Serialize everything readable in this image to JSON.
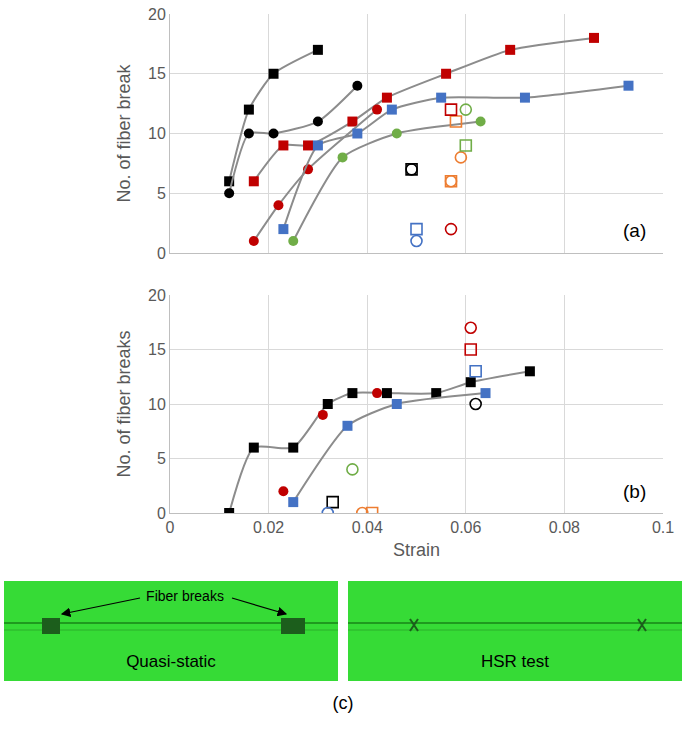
{
  "chart_data": [
    {
      "type": "scatter",
      "y_label": "No. of fiber break",
      "annotations": [
        "(a)"
      ],
      "xlim": [
        0,
        0.1
      ],
      "xticks": [
        0,
        0.02,
        0.04,
        0.06,
        0.08,
        0.1
      ],
      "ylim": [
        0,
        20
      ],
      "yticks": [
        0,
        5,
        10,
        15,
        20
      ],
      "grid": true,
      "tick_labels": "y",
      "series": [
        {
          "type": "line",
          "color": "#000000",
          "marker": "square",
          "x": [
            0.012,
            0.016,
            0.021,
            0.03
          ],
          "values": [
            6,
            12,
            15,
            17
          ]
        },
        {
          "type": "line",
          "color": "#000000",
          "marker": "circle",
          "x": [
            0.012,
            0.016,
            0.021,
            0.03,
            0.038
          ],
          "values": [
            5,
            10,
            10,
            11,
            14
          ]
        },
        {
          "type": "line",
          "color": "#c00000",
          "marker": "square",
          "x": [
            0.017,
            0.023,
            0.028,
            0.037,
            0.044,
            0.056,
            0.069,
            0.086
          ],
          "values": [
            6,
            9,
            9,
            11,
            13,
            15,
            17,
            18
          ]
        },
        {
          "type": "line",
          "color": "#c00000",
          "marker": "circle",
          "x": [
            0.017,
            0.022,
            0.028,
            0.042
          ],
          "values": [
            1,
            4,
            7,
            12
          ]
        },
        {
          "type": "line",
          "color": "#4472c4",
          "marker": "square",
          "x": [
            0.023,
            0.03,
            0.038,
            0.045,
            0.055,
            0.072,
            0.093
          ],
          "values": [
            2,
            9,
            10,
            12,
            13,
            13,
            14
          ]
        },
        {
          "type": "line",
          "color": "#70ad47",
          "marker": "circle",
          "x": [
            0.025,
            0.035,
            0.046,
            0.063
          ],
          "values": [
            1,
            8,
            10,
            11
          ]
        },
        {
          "type": "scatter",
          "color": "#000000",
          "marker": "square-open",
          "x": [
            0.049
          ],
          "values": [
            7
          ]
        },
        {
          "type": "scatter",
          "color": "#000000",
          "marker": "circle-open",
          "x": [
            0.049
          ],
          "values": [
            7
          ]
        },
        {
          "type": "scatter",
          "color": "#ed7d31",
          "marker": "square-open",
          "x": [
            0.057,
            0.058
          ],
          "values": [
            6,
            11
          ]
        },
        {
          "type": "scatter",
          "color": "#ed7d31",
          "marker": "circle-open",
          "x": [
            0.057,
            0.059
          ],
          "values": [
            6,
            8
          ]
        },
        {
          "type": "scatter",
          "color": "#4472c4",
          "marker": "square-open",
          "x": [
            0.05
          ],
          "values": [
            2
          ]
        },
        {
          "type": "scatter",
          "color": "#4472c4",
          "marker": "circle-open",
          "x": [
            0.05
          ],
          "values": [
            1
          ]
        },
        {
          "type": "scatter",
          "color": "#c00000",
          "marker": "square-open",
          "x": [
            0.057
          ],
          "values": [
            12
          ]
        },
        {
          "type": "scatter",
          "color": "#c00000",
          "marker": "circle-open",
          "x": [
            0.057
          ],
          "values": [
            2
          ]
        },
        {
          "type": "scatter",
          "color": "#70ad47",
          "marker": "square-open",
          "x": [
            0.06
          ],
          "values": [
            9
          ]
        },
        {
          "type": "scatter",
          "color": "#70ad47",
          "marker": "circle-open",
          "x": [
            0.06
          ],
          "values": [
            12
          ]
        }
      ]
    },
    {
      "type": "scatter",
      "x_label": "Strain",
      "y_label": "No. of fiber breaks",
      "annotations": [
        "(b)"
      ],
      "xlim": [
        0,
        0.1
      ],
      "xticks": [
        0,
        0.02,
        0.04,
        0.06,
        0.08,
        0.1
      ],
      "ylim": [
        0,
        20
      ],
      "yticks": [
        0,
        5,
        10,
        15,
        20
      ],
      "grid": true,
      "series": [
        {
          "type": "line",
          "color": "#000000",
          "marker": "square",
          "x": [
            0.012,
            0.017,
            0.025,
            0.032,
            0.037,
            0.044,
            0.054,
            0.061,
            0.073
          ],
          "values": [
            0,
            6,
            6,
            10,
            11,
            11,
            11,
            12,
            13
          ]
        },
        {
          "type": "scatter",
          "color": "#c00000",
          "marker": "circle",
          "x": [
            0.023,
            0.031,
            0.042
          ],
          "values": [
            2,
            9,
            11
          ]
        },
        {
          "type": "line",
          "color": "#4472c4",
          "marker": "square",
          "x": [
            0.025,
            0.036,
            0.046,
            0.064
          ],
          "values": [
            1,
            8,
            10,
            11
          ]
        },
        {
          "type": "scatter",
          "color": "#000000",
          "marker": "square-open",
          "x": [
            0.033
          ],
          "values": [
            1
          ]
        },
        {
          "type": "scatter",
          "color": "#4472c4",
          "marker": "circle-open",
          "x": [
            0.032
          ],
          "values": [
            0
          ]
        },
        {
          "type": "scatter",
          "color": "#70ad47",
          "marker": "circle-open",
          "x": [
            0.037
          ],
          "values": [
            4
          ]
        },
        {
          "type": "scatter",
          "color": "#ed7d31",
          "marker": "circle-open",
          "x": [
            0.039
          ],
          "values": [
            0
          ]
        },
        {
          "type": "scatter",
          "color": "#ed7d31",
          "marker": "square-open",
          "x": [
            0.041
          ],
          "values": [
            0
          ]
        },
        {
          "type": "scatter",
          "color": "#c00000",
          "marker": "circle-open",
          "x": [
            0.061
          ],
          "values": [
            17
          ]
        },
        {
          "type": "scatter",
          "color": "#c00000",
          "marker": "square-open",
          "x": [
            0.061
          ],
          "values": [
            15
          ]
        },
        {
          "type": "scatter",
          "color": "#4472c4",
          "marker": "square-open",
          "x": [
            0.062
          ],
          "values": [
            13
          ]
        },
        {
          "type": "scatter",
          "color": "#000000",
          "marker": "circle-open",
          "x": [
            0.062
          ],
          "values": [
            10
          ]
        }
      ]
    }
  ],
  "panel_c": {
    "label": "(c)",
    "pointer": "Fiber breaks",
    "images": [
      {
        "caption": "Quasi-static"
      },
      {
        "caption": "HSR test"
      }
    ]
  }
}
